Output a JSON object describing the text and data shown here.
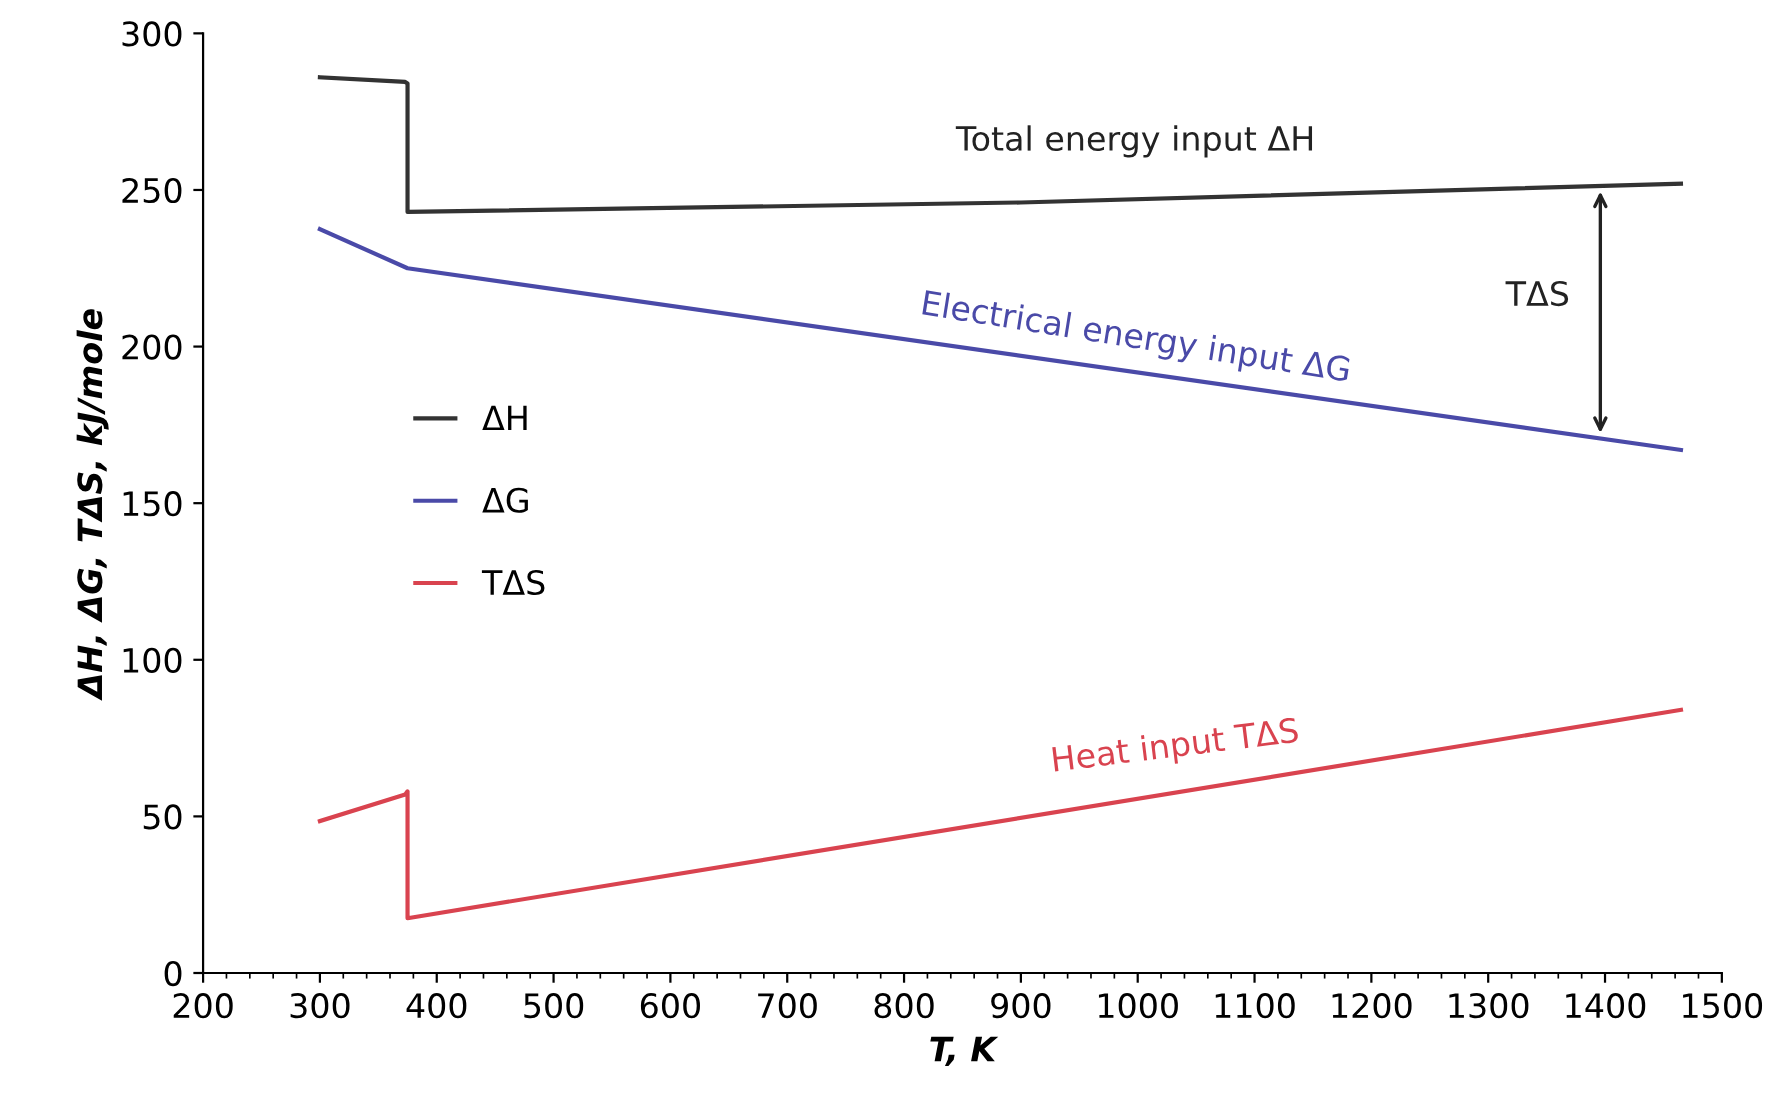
{
  "chart_data": {
    "type": "line",
    "xlabel": "T, K",
    "ylabel": "ΔH, ΔG, TΔS, kJ/mole",
    "xlim": [
      200,
      1500
    ],
    "xticks": [
      200,
      300,
      400,
      500,
      600,
      700,
      800,
      900,
      1000,
      1100,
      1200,
      1300,
      1400,
      1500
    ],
    "ylim": [
      0,
      300
    ],
    "yticks": [
      0,
      50,
      100,
      150,
      200,
      250,
      300
    ],
    "grid": false,
    "legend": "left",
    "marker": "none",
    "line_style": "solid",
    "series": [
      {
        "name": "ΔH",
        "color": "#333333",
        "x": [
          300,
          373,
          375,
          375,
          900,
          1465
        ],
        "values": [
          286,
          284.5,
          284,
          243,
          246,
          252
        ]
      },
      {
        "name": "ΔG",
        "color": "#4a4aa8",
        "x": [
          300,
          375,
          1465
        ],
        "values": [
          237.5,
          225,
          167
        ]
      },
      {
        "name": "TΔS",
        "color": "#d9434f",
        "x": [
          300,
          373,
          375,
          375,
          1465
        ],
        "values": [
          48.5,
          57,
          58,
          17.5,
          84
        ]
      }
    ],
    "annotations": [
      "Total energy input ΔH",
      "Electrical energy input ΔG",
      "Heat input TΔS",
      "TΔS"
    ]
  }
}
